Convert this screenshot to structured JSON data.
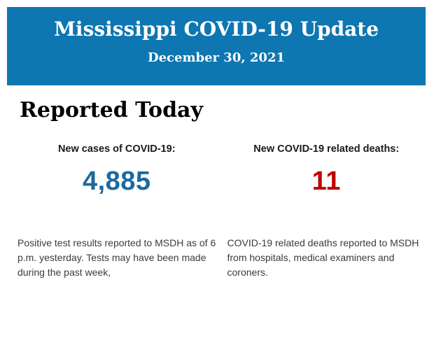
{
  "header": {
    "title": "Mississippi COVID-19 Update",
    "date": "December 30, 2021",
    "background_color": "#0e76b1",
    "text_color": "#ffffff"
  },
  "section": {
    "heading": "Reported Today"
  },
  "stats": [
    {
      "label": "New cases of COVID-19:",
      "value": "4,885",
      "value_color": "#1c6a9e",
      "description": "Positive test results reported to MSDH as of 6 p.m. yesterday. Tests may have been made during the past week,"
    },
    {
      "label": "New COVID-19 related deaths:",
      "value": "11",
      "value_color": "#c00000",
      "description": "COVID-19 related deaths reported to MSDH from hospitals, medical examiners and coroners."
    }
  ]
}
